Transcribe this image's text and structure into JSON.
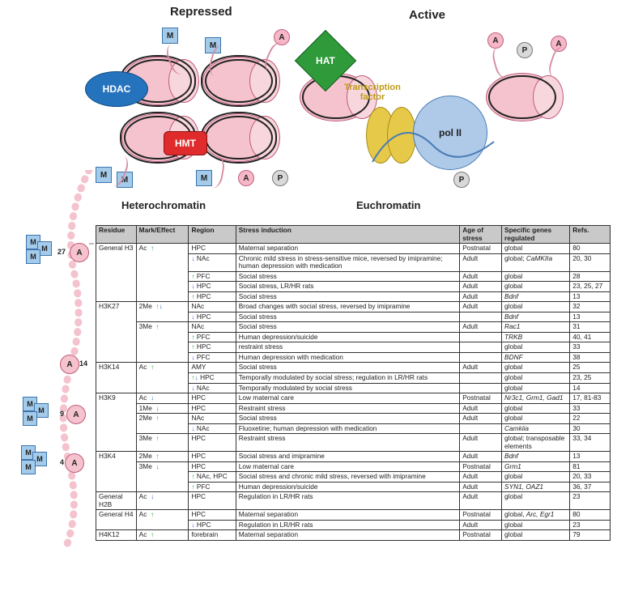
{
  "diagram": {
    "labels": {
      "repressed": "Repressed",
      "active": "Active",
      "heterochromatin": "Heterochromatin",
      "euchromatin": "Euchromatin"
    },
    "proteins": {
      "hdac": "HDAC",
      "hmt": "HMT",
      "hat": "HAT",
      "pol2": "pol II",
      "tf": "Transcription\nfactor"
    },
    "mark_letters": {
      "M": "M",
      "A": "A",
      "P": "P"
    },
    "colors": {
      "nucleosome_fill": "#f4c3cd",
      "nucleosome_border": "#c05a7c",
      "hdac_fill": "#2673bd",
      "hmt_fill": "#df2b2b",
      "hat_fill": "#2f9a3a",
      "pol2_fill": "#aecae8",
      "tf_fill": "#e7c94a",
      "mark_M_fill": "#a4cbea",
      "mark_A_fill": "#f6b7c8",
      "mark_P_fill": "#d9d9d9",
      "dna": "#222222",
      "tail": "#d78ba0",
      "background": "#ffffff",
      "table_header": "#c9c9c9",
      "arrow_up": "#25a233",
      "arrow_down": "#2e5fc1"
    }
  },
  "histone_tail": {
    "residues": [
      {
        "num": "27",
        "y": 0
      },
      {
        "num": "14",
        "y": 1
      },
      {
        "num": "9",
        "y": 2
      },
      {
        "num": "4",
        "y": 3
      }
    ]
  },
  "table": {
    "headers": {
      "residue": "Residue",
      "mark": "Mark/Effect",
      "region": "Region",
      "stress": "Stress induction",
      "age": "Age of stress",
      "genes": "Specific genes regulated",
      "refs": "Refs."
    },
    "rows": [
      {
        "residue": "General H3",
        "sub": [
          {
            "mark": "Ac",
            "eff": [
              "up"
            ],
            "region": "HPC",
            "stress": "Maternal separation",
            "age": "Postnatal",
            "genes": "global",
            "refs": "80"
          },
          {
            "mark": "",
            "eff": [
              "down"
            ],
            "region": "NAc",
            "stress": "Chronic mild stress in stress-sensitive mice, reversed by imipramine; human depression with medication",
            "age": "Adult",
            "genes": "global; CaMKIIa",
            "genes_italic": "CaMKIIa",
            "refs": "20, 30"
          },
          {
            "mark": "",
            "eff": [
              "up"
            ],
            "region": "PFC",
            "stress": "Social stress",
            "age": "Adult",
            "genes": "global",
            "refs": "28"
          },
          {
            "mark": "",
            "eff": [
              "down"
            ],
            "region": "HPC",
            "stress": "Social stress, LR/HR rats",
            "age": "Adult",
            "genes": "global",
            "refs": "23, 25, 27"
          },
          {
            "mark": "",
            "eff": [
              "up"
            ],
            "region": "HPC",
            "stress": "Social stress",
            "age": "Adult",
            "genes": "Bdnf",
            "genes_italic": "Bdnf",
            "refs": "13"
          }
        ]
      },
      {
        "residue": "H3K27",
        "sub": [
          {
            "mark": "2Me",
            "eff": [
              "up",
              "down"
            ],
            "region": "NAc",
            "stress": "Broad changes with social stress, reversed by imipramine",
            "age": "Adult",
            "genes": "global",
            "refs": "32"
          },
          {
            "mark": "",
            "eff": [
              "down"
            ],
            "region": "HPC",
            "stress": "Social stress",
            "age": "",
            "genes": "Bdnf",
            "genes_italic": "Bdnf",
            "refs": "13"
          },
          {
            "mark": "3Me",
            "eff": [
              "up"
            ],
            "region": "NAc",
            "stress": "Social stress",
            "age": "Adult",
            "genes": "Rac1",
            "genes_italic": "Rac1",
            "refs": "31"
          },
          {
            "mark": "",
            "eff": [
              "up"
            ],
            "region": "PFC",
            "stress": "Human depression/suicide",
            "age": "",
            "genes": "TRKB",
            "genes_italic": "TRKB",
            "refs": "40, 41"
          },
          {
            "mark": "",
            "eff": [
              "up"
            ],
            "region": "HPC",
            "stress": "restraint stress",
            "age": "",
            "genes": "global",
            "refs": "33"
          },
          {
            "mark": "",
            "eff": [
              "down"
            ],
            "region": "PFC",
            "stress": "Human depression with medication",
            "age": "",
            "genes": "BDNF",
            "genes_italic": "BDNF",
            "refs": "38"
          }
        ]
      },
      {
        "residue": "H3K14",
        "sub": [
          {
            "mark": "Ac",
            "eff": [
              "up"
            ],
            "region": "AMY",
            "stress": "Social stress",
            "age": "Adult",
            "genes": "global",
            "refs": "25"
          },
          {
            "mark": "",
            "eff": [
              "up",
              "down"
            ],
            "region": "HPC",
            "stress": "Temporally modulated by social stress; regulation in LR/HR rats",
            "age": "",
            "genes": "global",
            "refs": "23, 25"
          },
          {
            "mark": "",
            "eff": [
              "down"
            ],
            "region": "NAc",
            "stress": "Temporally modulated by social stress",
            "age": "",
            "genes": "global",
            "refs": "14"
          }
        ]
      },
      {
        "residue": "H3K9",
        "sub": [
          {
            "mark": "Ac",
            "eff": [
              "down"
            ],
            "region": "HPC",
            "stress": "Low maternal care",
            "age": "Postnatal",
            "genes": "Nr3c1, Grm1, Gad1",
            "genes_italic": "Nr3c1, Grm1, Gad1",
            "refs": "17, 81-83"
          },
          {
            "mark": "1Me",
            "eff": [
              "down"
            ],
            "region": "HPC",
            "stress": "Restraint stress",
            "age": "Adult",
            "genes": "global",
            "refs": "33"
          },
          {
            "mark": "2Me",
            "eff": [
              "up"
            ],
            "region": "NAc",
            "stress": "Social stress",
            "age": "Adult",
            "genes": "global",
            "refs": "22"
          },
          {
            "mark": "",
            "eff": [
              "down"
            ],
            "region": "NAc",
            "stress": "Fluoxetine; human depression with medication",
            "age": "",
            "genes": "Camkiia",
            "genes_italic": "Camkiia",
            "refs": "30"
          },
          {
            "mark": "3Me",
            "eff": [
              "up"
            ],
            "region": "HPC",
            "stress": "Restraint stress",
            "age": "Adult",
            "genes": "global; transposable elements",
            "refs": "33, 34"
          }
        ]
      },
      {
        "residue": "H3K4",
        "sub": [
          {
            "mark": "2Me",
            "eff": [
              "up"
            ],
            "region": "HPC",
            "stress": "Social stress and imipramine",
            "age": "Adult",
            "genes": "Bdnf",
            "genes_italic": "Bdnf",
            "refs": "13"
          },
          {
            "mark": "3Me",
            "eff": [
              "down"
            ],
            "region": "HPC",
            "stress": "Low maternal care",
            "age": "Postnatal",
            "genes": "Grm1",
            "genes_italic": "Grm1",
            "refs": "81"
          },
          {
            "mark": "",
            "eff": [
              "up"
            ],
            "region": "NAc, HPC",
            "stress": "Social stress and chronic mild stress, reversed with imipramine",
            "age": "Adult",
            "genes": "global",
            "refs": "20, 33"
          },
          {
            "mark": "",
            "eff": [
              "up"
            ],
            "region": "PFC",
            "stress": "Human depression/suicide",
            "age": "Adult",
            "genes": "SYN1, OAZ1",
            "genes_italic": "SYN1, OAZ1",
            "refs": "36, 37"
          }
        ]
      },
      {
        "residue": "General H2B",
        "sub": [
          {
            "mark": "Ac",
            "eff": [
              "down"
            ],
            "region": "HPC",
            "stress": "Regulation in LR/HR rats",
            "age": "Adult",
            "genes": "global",
            "refs": "23"
          }
        ]
      },
      {
        "residue": "General H4",
        "sub": [
          {
            "mark": "Ac",
            "eff": [
              "up"
            ],
            "region": "HPC",
            "stress": "Maternal separation",
            "age": "Postnatal",
            "genes": "global, Arc, Egr1",
            "genes_italic": "Arc, Egr1",
            "refs": "80"
          },
          {
            "mark": "",
            "eff": [
              "down"
            ],
            "region": "HPC",
            "stress": "Regulation in LR/HR rats",
            "age": "Adult",
            "genes": "global",
            "refs": "23"
          }
        ]
      },
      {
        "residue": "H4K12",
        "sub": [
          {
            "mark": "Ac",
            "eff": [
              "up"
            ],
            "region": "forebrain",
            "stress": "Maternal separation",
            "age": "Postnatal",
            "genes": "global",
            "refs": "79"
          }
        ]
      }
    ]
  }
}
